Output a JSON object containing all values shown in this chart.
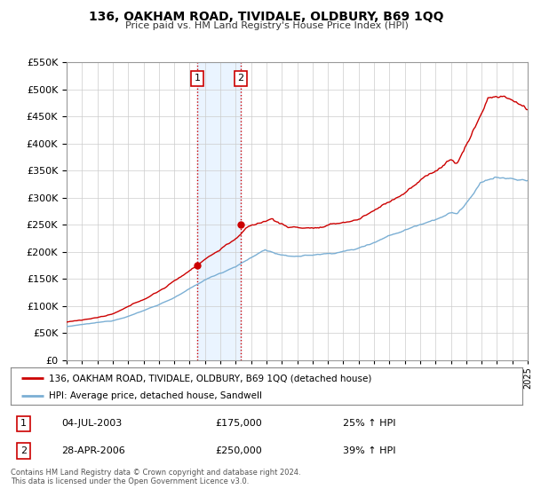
{
  "title": "136, OAKHAM ROAD, TIVIDALE, OLDBURY, B69 1QQ",
  "subtitle": "Price paid vs. HM Land Registry's House Price Index (HPI)",
  "red_label": "136, OAKHAM ROAD, TIVIDALE, OLDBURY, B69 1QQ (detached house)",
  "blue_label": "HPI: Average price, detached house, Sandwell",
  "footnote1": "Contains HM Land Registry data © Crown copyright and database right 2024.",
  "footnote2": "This data is licensed under the Open Government Licence v3.0.",
  "sale1_date": "04-JUL-2003",
  "sale1_price": "£175,000",
  "sale1_hpi": "25% ↑ HPI",
  "sale1_year": 2003.5,
  "sale2_date": "28-APR-2006",
  "sale2_price": "£250,000",
  "sale2_hpi": "39% ↑ HPI",
  "sale2_year": 2006.33,
  "ylim": [
    0,
    550000
  ],
  "xlim_start": 1995,
  "xlim_end": 2025,
  "background_color": "#ffffff",
  "grid_color": "#cccccc",
  "red_color": "#cc0000",
  "blue_color": "#7bafd4",
  "shade_color": "#ddeeff"
}
